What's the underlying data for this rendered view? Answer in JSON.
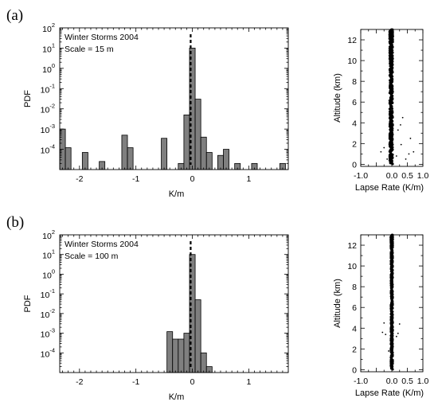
{
  "chart_data": [
    {
      "type": "bar",
      "panel_label": "(a)",
      "annotation_lines": [
        "Winter Storms 2004",
        "Scale  = 15 m"
      ],
      "xlabel": "K/m",
      "ylabel": "PDF",
      "xlim": [
        -2.35,
        1.7
      ],
      "y_scale": "log",
      "ylim_exp": [
        -5,
        2
      ],
      "xticks": [
        {
          "v": -2,
          "t": "-2"
        },
        {
          "v": -1,
          "t": "-1"
        },
        {
          "v": 0,
          "t": "0"
        },
        {
          "v": 1,
          "t": "1"
        }
      ],
      "yticks": [
        {
          "base": "10",
          "exp": "2",
          "v": 2
        },
        {
          "base": "10",
          "exp": "1",
          "v": 1
        },
        {
          "base": "10",
          "exp": "0",
          "v": 0
        },
        {
          "base": "10",
          "exp": "-1",
          "v": -1
        },
        {
          "base": "10",
          "exp": "-2",
          "v": -2
        },
        {
          "base": "10",
          "exp": "-3",
          "v": -3
        },
        {
          "base": "10",
          "exp": "-4",
          "v": -4
        }
      ],
      "bin_width": 0.1,
      "bars": [
        {
          "x": -2.3,
          "y": 0.001
        },
        {
          "x": -2.2,
          "y": 0.00012
        },
        {
          "x": -1.9,
          "y": 7e-05
        },
        {
          "x": -1.6,
          "y": 2.5e-05
        },
        {
          "x": -1.2,
          "y": 0.0005
        },
        {
          "x": -1.1,
          "y": 0.00012
        },
        {
          "x": -0.5,
          "y": 0.00035
        },
        {
          "x": -0.2,
          "y": 2e-05
        },
        {
          "x": -0.1,
          "y": 0.005
        },
        {
          "x": 0.0,
          "y": 10
        },
        {
          "x": 0.1,
          "y": 0.03
        },
        {
          "x": 0.2,
          "y": 0.0004
        },
        {
          "x": 0.3,
          "y": 7e-05
        },
        {
          "x": 0.5,
          "y": 5e-05
        },
        {
          "x": 0.6,
          "y": 0.0001
        },
        {
          "x": 0.8,
          "y": 2e-05
        },
        {
          "x": 1.1,
          "y": 2e-05
        },
        {
          "x": 1.6,
          "y": 2e-05
        }
      ],
      "reference_line_x": -0.03
    },
    {
      "type": "scatter",
      "panel": "(a) lapse rate profile",
      "xlabel": "Lapse Rate  (K/m)",
      "ylabel": "Altitude  (km)",
      "xlim": [
        -1.0,
        1.0
      ],
      "ylim": [
        -0.2,
        13
      ],
      "xticks": [
        {
          "v": -1,
          "t": "-1.0"
        },
        {
          "v": 0,
          "t": "0.0"
        },
        {
          "v": 0.5,
          "t": "0.5"
        },
        {
          "v": 1,
          "t": "1.0"
        }
      ],
      "yticks": [
        {
          "v": 0,
          "t": "0"
        },
        {
          "v": 2,
          "t": "2"
        },
        {
          "v": 4,
          "t": "4"
        },
        {
          "v": 6,
          "t": "6"
        },
        {
          "v": 8,
          "t": "8"
        },
        {
          "v": 10,
          "t": "10"
        },
        {
          "v": 12,
          "t": "12"
        }
      ],
      "profile_center_x": -0.02,
      "profile_spread": 0.05,
      "outliers": [
        {
          "x": 0.35,
          "y": 4.5
        },
        {
          "x": 0.28,
          "y": 3.8
        },
        {
          "x": 0.2,
          "y": 3.3
        },
        {
          "x": 0.6,
          "y": 2.5
        },
        {
          "x": 0.7,
          "y": 1.2
        },
        {
          "x": 0.55,
          "y": 1.0
        },
        {
          "x": -0.25,
          "y": 1.6
        },
        {
          "x": -0.35,
          "y": 1.2
        },
        {
          "x": 0.15,
          "y": 0.8
        },
        {
          "x": 0.3,
          "y": 1.9
        },
        {
          "x": 0.45,
          "y": 0.5
        },
        {
          "x": -0.15,
          "y": 0.5
        }
      ]
    },
    {
      "type": "bar",
      "panel_label": "(b)",
      "annotation_lines": [
        "Winter Storms 2004",
        "Scale  = 100 m"
      ],
      "xlabel": "K/m",
      "ylabel": "PDF",
      "xlim": [
        -2.35,
        1.7
      ],
      "y_scale": "log",
      "ylim_exp": [
        -5,
        2
      ],
      "xticks": [
        {
          "v": -2,
          "t": "-2"
        },
        {
          "v": -1,
          "t": "-1"
        },
        {
          "v": 0,
          "t": "0"
        },
        {
          "v": 1,
          "t": "1"
        }
      ],
      "yticks": [
        {
          "base": "10",
          "exp": "2",
          "v": 2
        },
        {
          "base": "10",
          "exp": "1",
          "v": 1
        },
        {
          "base": "10",
          "exp": "0",
          "v": 0
        },
        {
          "base": "10",
          "exp": "-1",
          "v": -1
        },
        {
          "base": "10",
          "exp": "-2",
          "v": -2
        },
        {
          "base": "10",
          "exp": "-3",
          "v": -3
        },
        {
          "base": "10",
          "exp": "-4",
          "v": -4
        }
      ],
      "bin_width": 0.1,
      "bars": [
        {
          "x": -0.4,
          "y": 0.0012
        },
        {
          "x": -0.3,
          "y": 0.0005
        },
        {
          "x": -0.2,
          "y": 0.0005
        },
        {
          "x": -0.1,
          "y": 0.001
        },
        {
          "x": 0.0,
          "y": 10
        },
        {
          "x": 0.1,
          "y": 0.05
        },
        {
          "x": 0.2,
          "y": 0.0001
        },
        {
          "x": 0.3,
          "y": 2e-05
        }
      ],
      "reference_line_x": -0.03
    },
    {
      "type": "scatter",
      "panel": "(b) lapse rate profile",
      "xlabel": "Lapse Rate  (K/m)",
      "ylabel": "Altitude  (km)",
      "xlim": [
        -1.0,
        1.0
      ],
      "ylim": [
        -0.2,
        13
      ],
      "xticks": [
        {
          "v": -1,
          "t": "-1.0"
        },
        {
          "v": 0,
          "t": "0.0"
        },
        {
          "v": 0.5,
          "t": "0.5"
        },
        {
          "v": 1,
          "t": "1.0"
        }
      ],
      "yticks": [
        {
          "v": 0,
          "t": "0"
        },
        {
          "v": 2,
          "t": "2"
        },
        {
          "v": 4,
          "t": "4"
        },
        {
          "v": 6,
          "t": "6"
        },
        {
          "v": 8,
          "t": "8"
        },
        {
          "v": 10,
          "t": "10"
        },
        {
          "v": 12,
          "t": "12"
        }
      ],
      "profile_center_x": 0.0,
      "profile_spread": 0.03,
      "outliers": [
        {
          "x": -0.25,
          "y": 4.5
        },
        {
          "x": -0.3,
          "y": 3.6
        },
        {
          "x": -0.2,
          "y": 3.4
        },
        {
          "x": 0.25,
          "y": 4.4
        },
        {
          "x": 0.2,
          "y": 3.5
        },
        {
          "x": 0.15,
          "y": 3.2
        },
        {
          "x": -0.05,
          "y": 1.2
        },
        {
          "x": 0.05,
          "y": 0.8
        },
        {
          "x": -0.1,
          "y": 1.8
        }
      ]
    }
  ]
}
